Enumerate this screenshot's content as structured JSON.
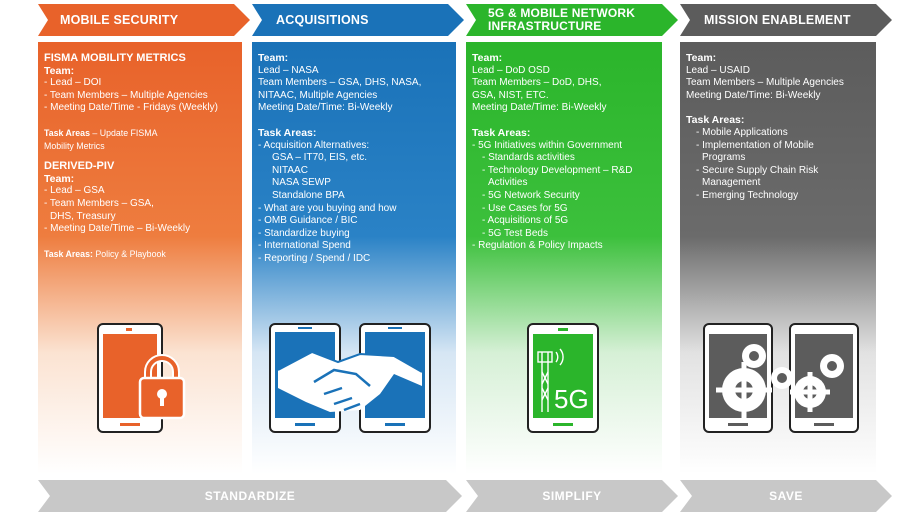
{
  "headers": [
    {
      "label": "MOBILE SECURITY"
    },
    {
      "label": "ACQUISITIONS"
    },
    {
      "label_line1": "5G & MOBILE NETWORK",
      "label_line2": "INFRASTRUCTURE"
    },
    {
      "label": "MISSION ENABLEMENT"
    }
  ],
  "col1": {
    "title1": "FISMA MOBILITY METRICS",
    "team1": "Team:",
    "t1_1": "- Lead – DOI",
    "t1_2": "- Team Members – Multiple Agencies",
    "t1_3": "- Meeting Date/Time - Fridays (Weekly)",
    "task1_label": "Task Areas",
    "task1_text": " – Update FISMA",
    "task1_text2": "Mobility Metrics",
    "title2": "DERIVED-PIV",
    "team2": "Team:",
    "t2_1": "- Lead – GSA",
    "t2_2": "- Team Members –  GSA,",
    "t2_3": "  DHS, Treasury",
    "t2_4": "- Meeting Date/Time –  Bi-Weekly",
    "task2_label": "Task Areas:",
    "task2_text": " Policy & Playbook"
  },
  "col2": {
    "team": "Team:",
    "t1": "Lead – NASA",
    "t2": "Team Members – GSA, DHS, NASA,",
    "t3": "NITAAC, Multiple Agencies",
    "t4": "Meeting Date/Time: Bi-Weekly",
    "task": "Task Areas:",
    "a1": "- Acquisition Alternatives:",
    "a2": "GSA – IT70, EIS, etc.",
    "a3": "NITAAC",
    "a4": "NASA SEWP",
    "a5": "Standalone BPA",
    "a6": "- What are you buying and how",
    "a7": "- OMB Guidance / BIC",
    "a8": "- Standardize buying",
    "a9": "- International Spend",
    "a10": "- Reporting / Spend / IDC"
  },
  "col3": {
    "team": "Team:",
    "t1": "Lead – DoD OSD",
    "t2": "Team Members – DoD, DHS,",
    "t3": "GSA, NIST, ETC.",
    "t4": "Meeting Date/Time: Bi-Weekly",
    "task": "Task Areas:",
    "a1": "- 5G Initiatives within Government",
    "a2": "- Standards activities",
    "a3": "- Technology Development – R&D",
    "a3b": "Activities",
    "a4": "- 5G Network Security",
    "a5": "- Use Cases for 5G",
    "a6": "- Acquisitions of 5G",
    "a7": "- 5G Test Beds",
    "a8": "- Regulation & Policy Impacts",
    "badge": "5G"
  },
  "col4": {
    "team": "Team:",
    "t1": "Lead – USAID",
    "t2": "Team Members – Multiple Agencies",
    "t3": "Meeting Date/Time: Bi-Weekly",
    "task": "Task Areas:",
    "a1": "- Mobile Applications",
    "a2": "- Implementation of Mobile",
    "a2b": "Programs",
    "a3": "- Secure Supply Chain Risk",
    "a3b": "Management",
    "a4": "- Emerging Technology"
  },
  "bottom": {
    "b1": "STANDARDIZE",
    "b2": "SIMPLIFY",
    "b3": "SAVE"
  },
  "colors": {
    "orange": "#e8622a",
    "blue": "#1a72b8",
    "green": "#2bb52b",
    "gray": "#5c5c5c",
    "arrow_gray": "#c8c8c8"
  },
  "icons": [
    "tablet-lock-icon",
    "handshake-tablets-icon",
    "5g-tablet-icon",
    "gears-tablets-icon"
  ]
}
